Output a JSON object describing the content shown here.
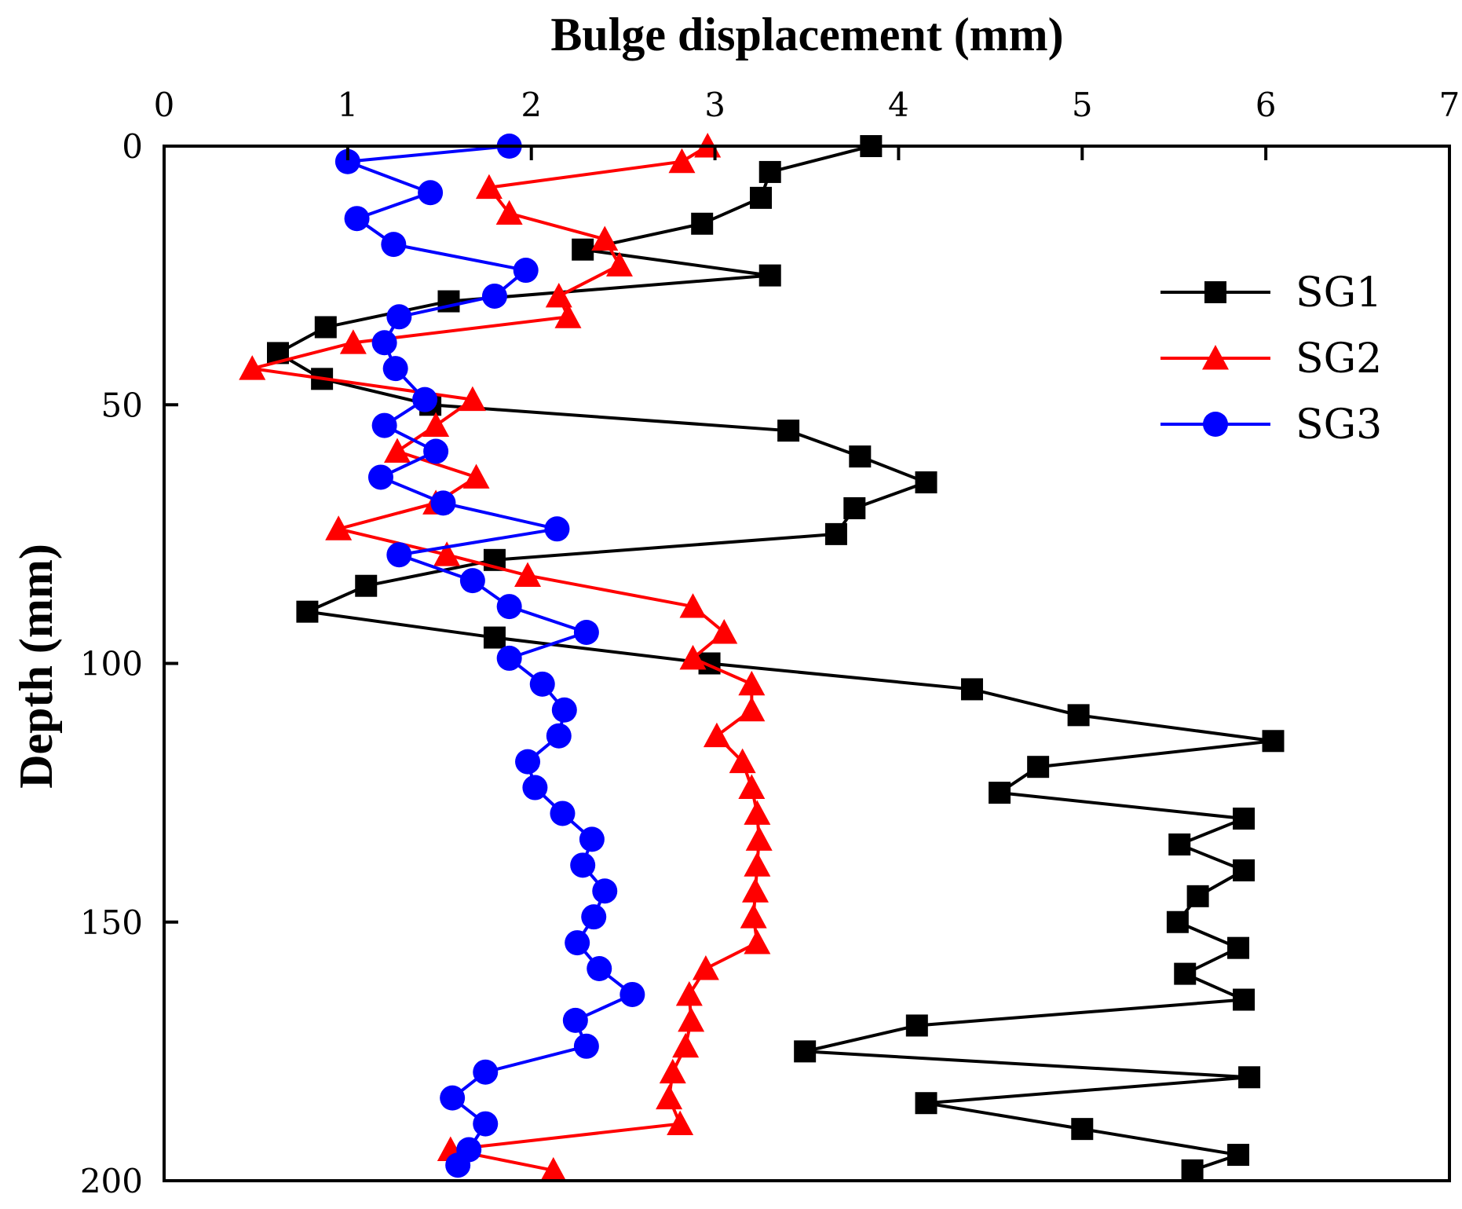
{
  "chart_data": {
    "type": "line",
    "title": "",
    "xlabel": "Bulge displacement (mm)",
    "ylabel": "Depth (mm)",
    "xlim": [
      0,
      7
    ],
    "ylim": [
      0,
      200
    ],
    "y_inverted": true,
    "x_axis_position": "top",
    "xticks": [
      "0",
      "1",
      "2",
      "3",
      "4",
      "5",
      "6",
      "7"
    ],
    "yticks": [
      "0",
      "50",
      "100",
      "150",
      "200"
    ],
    "grid": false,
    "legend_position": "top-right",
    "legend": [
      "SG1",
      "SG2",
      "SG3"
    ],
    "series": [
      {
        "name": "SG1",
        "color": "#000000",
        "marker": "square",
        "depth": [
          0,
          5,
          10,
          15,
          20,
          25,
          30,
          35,
          40,
          45,
          50,
          55,
          60,
          65,
          70,
          75,
          80,
          85,
          90,
          95,
          100,
          105,
          110,
          115,
          120,
          125,
          130,
          135,
          140,
          145,
          150,
          155,
          160,
          165,
          170,
          175,
          180,
          185,
          190,
          195,
          198
        ],
        "displacement": [
          3.85,
          3.3,
          3.25,
          2.93,
          2.28,
          3.3,
          1.55,
          0.88,
          0.62,
          0.86,
          1.45,
          3.4,
          3.79,
          4.15,
          3.76,
          3.66,
          1.8,
          1.1,
          0.78,
          1.8,
          2.97,
          4.4,
          4.98,
          6.04,
          4.76,
          4.55,
          5.88,
          5.53,
          5.88,
          5.63,
          5.52,
          5.85,
          5.56,
          5.88,
          4.1,
          3.49,
          5.91,
          4.15,
          5.0,
          5.85,
          5.6
        ]
      },
      {
        "name": "SG2",
        "color": "#ff0000",
        "marker": "triangle",
        "depth": [
          0,
          3,
          8,
          13,
          18,
          23,
          29,
          33,
          38,
          43,
          49,
          54,
          59,
          64,
          69,
          74,
          79,
          83,
          89,
          94,
          99,
          104,
          109,
          114,
          119,
          124,
          129,
          134,
          139,
          144,
          149,
          154,
          159,
          164,
          169,
          174,
          179,
          184,
          189,
          194,
          198
        ],
        "displacement": [
          2.96,
          2.82,
          1.77,
          1.88,
          2.4,
          2.48,
          2.15,
          2.2,
          1.03,
          0.48,
          1.68,
          1.48,
          1.27,
          1.7,
          1.48,
          0.95,
          1.54,
          1.98,
          2.88,
          3.05,
          2.88,
          3.2,
          3.2,
          3.01,
          3.15,
          3.2,
          3.23,
          3.24,
          3.23,
          3.22,
          3.21,
          3.23,
          2.95,
          2.86,
          2.87,
          2.84,
          2.77,
          2.75,
          2.81,
          1.56,
          2.12
        ]
      },
      {
        "name": "SG3",
        "color": "#0000ff",
        "marker": "circle",
        "depth": [
          0,
          3,
          9,
          14,
          19,
          24,
          29,
          33,
          38,
          43,
          49,
          54,
          59,
          64,
          69,
          74,
          79,
          84,
          89,
          94,
          99,
          104,
          109,
          114,
          119,
          124,
          129,
          134,
          139,
          144,
          149,
          154,
          159,
          164,
          169,
          174,
          179,
          184,
          189,
          194,
          197
        ],
        "displacement": [
          1.88,
          1.0,
          1.45,
          1.05,
          1.25,
          1.97,
          1.8,
          1.28,
          1.2,
          1.26,
          1.42,
          1.2,
          1.48,
          1.18,
          1.52,
          2.14,
          1.28,
          1.68,
          1.88,
          2.3,
          1.88,
          2.06,
          2.18,
          2.15,
          1.98,
          2.02,
          2.17,
          2.33,
          2.28,
          2.4,
          2.34,
          2.25,
          2.37,
          2.55,
          2.24,
          2.3,
          1.75,
          1.57,
          1.75,
          1.66,
          1.6
        ]
      }
    ]
  }
}
